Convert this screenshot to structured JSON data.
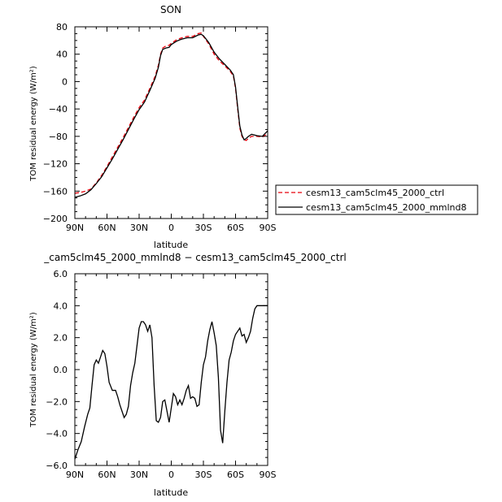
{
  "chart_data": [
    {
      "type": "line",
      "title": "SON",
      "xlabel": "latitude",
      "ylabel": "TOM residual energy (W/m²)",
      "xlim": [
        90,
        -90
      ],
      "ylim": [
        -200,
        80
      ],
      "x_ticks": [
        90,
        60,
        30,
        0,
        -30,
        -60,
        -90
      ],
      "x_tick_labels": [
        "90N",
        "60N",
        "30N",
        "0",
        "30S",
        "60S",
        "90S"
      ],
      "y_ticks": [
        -200,
        -160,
        -120,
        -80,
        -40,
        0,
        40,
        80
      ],
      "y_tick_labels": [
        "−200",
        "−160",
        "−120",
        "−80",
        "−40",
        "0",
        "40",
        "80"
      ],
      "legend_position": "right",
      "series": [
        {
          "name": "cesm13_cam5clm45_2000_ctrl",
          "color": "#e8000b",
          "dash": "dashed",
          "x": [
            90,
            85,
            80,
            75,
            70,
            65,
            60,
            55,
            50,
            45,
            40,
            35,
            30,
            25,
            20,
            15,
            12,
            10,
            8,
            5,
            2,
            0,
            -2,
            -5,
            -8,
            -10,
            -15,
            -20,
            -25,
            -28,
            -30,
            -35,
            -40,
            -45,
            -50,
            -55,
            -58,
            -60,
            -62,
            -64,
            -66,
            -68,
            -70,
            -72,
            -75,
            -80,
            -85,
            -90
          ],
          "values": [
            -163,
            -162,
            -160,
            -157,
            -148,
            -137,
            -124,
            -110,
            -96,
            -82,
            -67,
            -52,
            -38,
            -27,
            -10,
            8,
            24,
            40,
            49,
            52,
            53,
            56,
            58,
            61,
            63,
            64,
            66,
            66,
            70,
            71,
            66,
            55,
            40,
            30,
            23,
            15,
            8,
            -10,
            -40,
            -68,
            -80,
            -85,
            -86,
            -83,
            -80,
            -80,
            -81,
            -76
          ]
        },
        {
          "name": "cesm13_cam5clm45_2000_mmlnd8",
          "color": "#000000",
          "dash": "solid",
          "x": [
            90,
            85,
            80,
            75,
            70,
            65,
            60,
            55,
            50,
            45,
            40,
            35,
            30,
            25,
            20,
            15,
            12,
            10,
            8,
            5,
            2,
            0,
            -2,
            -5,
            -8,
            -10,
            -15,
            -20,
            -25,
            -28,
            -30,
            -35,
            -40,
            -45,
            -50,
            -55,
            -58,
            -60,
            -62,
            -64,
            -66,
            -68,
            -70,
            -72,
            -75,
            -80,
            -85,
            -90
          ],
          "values": [
            -169,
            -167,
            -164,
            -158,
            -149,
            -139,
            -126,
            -113,
            -99,
            -85,
            -70,
            -55,
            -41,
            -30,
            -13,
            5,
            21,
            38,
            47,
            49,
            50,
            54,
            56,
            59,
            61,
            62,
            64,
            64,
            68,
            69,
            67,
            57,
            43,
            33,
            25,
            17,
            10,
            -8,
            -37,
            -65,
            -78,
            -85,
            -83,
            -80,
            -77,
            -79,
            -80,
            -72
          ]
        }
      ]
    },
    {
      "type": "line",
      "title": "_cam5clm45_2000_mmlnd8 − cesm13_cam5clm45_2000_ctrl",
      "xlabel": "latitude",
      "ylabel": "TOM residual energy (W/m²)",
      "xlim": [
        90,
        -90
      ],
      "ylim": [
        -6,
        6
      ],
      "x_ticks": [
        90,
        60,
        30,
        0,
        -30,
        -60,
        -90
      ],
      "x_tick_labels": [
        "90N",
        "60N",
        "30N",
        "0",
        "30S",
        "60S",
        "90S"
      ],
      "y_ticks": [
        -6,
        -4,
        -2,
        0,
        2,
        4,
        6
      ],
      "y_tick_labels": [
        "−6.0",
        "−4.0",
        "−2.0",
        "0.0",
        "2.0",
        "4.0",
        "6.0"
      ],
      "series": [
        {
          "color": "#000000",
          "dash": "solid",
          "x": [
            90,
            87,
            84,
            81,
            78,
            76,
            74,
            72,
            70,
            68,
            66,
            64,
            62,
            60,
            58,
            55,
            52,
            50,
            48,
            46,
            44,
            42,
            40,
            38,
            36,
            34,
            32,
            30,
            28,
            26,
            24,
            22,
            20,
            18,
            16,
            14,
            12,
            10,
            8,
            6,
            4,
            2,
            0,
            -2,
            -4,
            -6,
            -8,
            -10,
            -12,
            -14,
            -16,
            -18,
            -20,
            -22,
            -24,
            -26,
            -28,
            -30,
            -32,
            -34,
            -36,
            -38,
            -40,
            -42,
            -44,
            -46,
            -48,
            -50,
            -52,
            -54,
            -56,
            -58,
            -60,
            -62,
            -64,
            -66,
            -68,
            -70,
            -72,
            -74,
            -76,
            -78,
            -80,
            -82,
            -84,
            -86,
            -88,
            -90
          ],
          "values": [
            -5.6,
            -5.0,
            -4.5,
            -3.6,
            -2.8,
            -2.4,
            -1.0,
            0.3,
            0.6,
            0.4,
            0.8,
            1.2,
            1.0,
            0.2,
            -0.8,
            -1.3,
            -1.3,
            -1.7,
            -2.2,
            -2.6,
            -3.0,
            -2.8,
            -2.3,
            -1.0,
            -0.2,
            0.4,
            1.5,
            2.6,
            3.0,
            3.0,
            2.8,
            2.4,
            2.8,
            2.0,
            -1.0,
            -3.2,
            -3.3,
            -3.0,
            -2.0,
            -1.9,
            -2.6,
            -3.3,
            -2.4,
            -1.5,
            -1.7,
            -2.2,
            -1.9,
            -2.2,
            -1.8,
            -1.3,
            -1.0,
            -1.8,
            -1.7,
            -1.8,
            -2.3,
            -2.2,
            -0.8,
            0.3,
            0.8,
            1.8,
            2.5,
            3.0,
            2.3,
            1.5,
            -0.5,
            -3.8,
            -4.6,
            -2.6,
            -0.8,
            0.6,
            1.1,
            1.8,
            2.2,
            2.4,
            2.6,
            2.1,
            2.2,
            1.7,
            2.0,
            2.4,
            3.2,
            3.8,
            4.0,
            4.0,
            4.0,
            4.0,
            4.0,
            4.0
          ]
        }
      ]
    }
  ]
}
